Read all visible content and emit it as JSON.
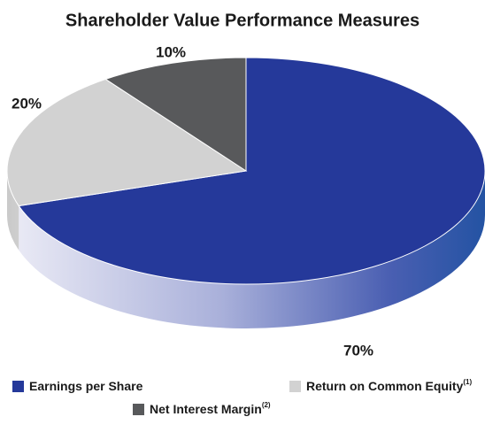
{
  "chart_data": {
    "type": "pie3d",
    "title": "Shareholder Value Performance Measures",
    "categories": [
      "Earnings per Share",
      "Return on Common Equity",
      "Net Interest Margin"
    ],
    "category_notes": [
      null,
      "(1)",
      "(2)"
    ],
    "values": [
      70,
      20,
      10
    ],
    "value_labels": [
      "70%",
      "20%",
      "10%"
    ],
    "colors": [
      "#25399a",
      "#d2d2d2",
      "#58595b"
    ],
    "legend": "bottom"
  }
}
